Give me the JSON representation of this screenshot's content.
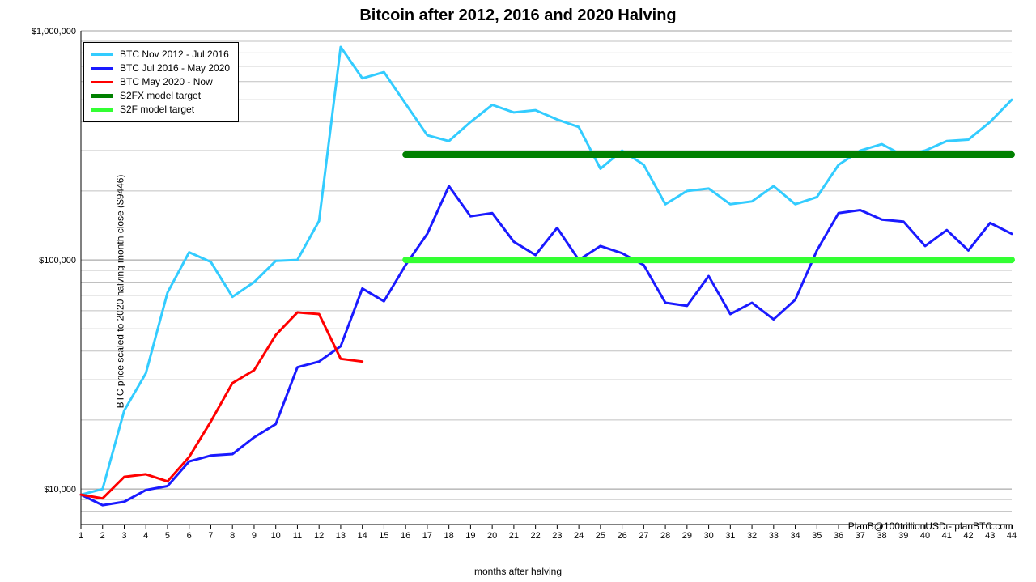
{
  "title": "Bitcoin after 2012, 2016 and 2020 Halving",
  "ylabel": "BTC price scaled to 2020 halving month close ($9446)",
  "xlabel": "months after halving",
  "attribution": "PlanB@100trillionUSD  -  planBTC.com",
  "chart": {
    "type": "line",
    "background_color": "#ffffff",
    "grid_color": "#c0c0c0",
    "x": {
      "min": 1,
      "max": 44,
      "ticks": [
        1,
        2,
        3,
        4,
        5,
        6,
        7,
        8,
        9,
        10,
        11,
        12,
        13,
        14,
        15,
        16,
        17,
        18,
        19,
        20,
        21,
        22,
        23,
        24,
        25,
        26,
        27,
        28,
        29,
        30,
        31,
        32,
        33,
        34,
        35,
        36,
        37,
        38,
        39,
        40,
        41,
        42,
        43,
        44
      ]
    },
    "y": {
      "scale": "log",
      "min": 7000,
      "max": 1000000,
      "major_ticks": [
        {
          "value": 10000,
          "label": "$10,000"
        },
        {
          "value": 100000,
          "label": "$100,000"
        },
        {
          "value": 1000000,
          "label": "$1,000,000"
        }
      ],
      "show_minor_grid": true
    },
    "series": [
      {
        "name": "BTC Nov 2012 - Jul 2016",
        "color": "#33ccff",
        "width": 3,
        "legend": true,
        "points": [
          [
            1,
            9446
          ],
          [
            2,
            10000
          ],
          [
            3,
            22000
          ],
          [
            4,
            32000
          ],
          [
            5,
            72000
          ],
          [
            6,
            108000
          ],
          [
            7,
            98000
          ],
          [
            8,
            69000
          ],
          [
            9,
            80000
          ],
          [
            10,
            99000
          ],
          [
            11,
            100000
          ],
          [
            12,
            148000
          ],
          [
            13,
            850000
          ],
          [
            14,
            620000
          ],
          [
            15,
            660000
          ],
          [
            16,
            480000
          ],
          [
            17,
            350000
          ],
          [
            18,
            330000
          ],
          [
            19,
            400000
          ],
          [
            20,
            475000
          ],
          [
            21,
            440000
          ],
          [
            22,
            450000
          ],
          [
            23,
            410000
          ],
          [
            24,
            380000
          ],
          [
            25,
            250000
          ],
          [
            26,
            300000
          ],
          [
            27,
            260000
          ],
          [
            28,
            175000
          ],
          [
            29,
            200000
          ],
          [
            30,
            205000
          ],
          [
            31,
            175000
          ],
          [
            32,
            180000
          ],
          [
            33,
            210000
          ],
          [
            34,
            175000
          ],
          [
            35,
            188000
          ],
          [
            36,
            260000
          ],
          [
            37,
            300000
          ],
          [
            38,
            320000
          ],
          [
            39,
            285000
          ],
          [
            40,
            300000
          ],
          [
            41,
            330000
          ],
          [
            42,
            335000
          ],
          [
            43,
            400000
          ],
          [
            44,
            500000
          ]
        ]
      },
      {
        "name": "BTC Jul 2016 - May 2020",
        "color": "#1a1aff",
        "width": 3,
        "legend": true,
        "points": [
          [
            1,
            9446
          ],
          [
            2,
            8500
          ],
          [
            3,
            8800
          ],
          [
            4,
            9900
          ],
          [
            5,
            10300
          ],
          [
            6,
            13200
          ],
          [
            7,
            14000
          ],
          [
            8,
            14200
          ],
          [
            9,
            16800
          ],
          [
            10,
            19200
          ],
          [
            11,
            34000
          ],
          [
            12,
            36000
          ],
          [
            13,
            42000
          ],
          [
            14,
            75000
          ],
          [
            15,
            66000
          ],
          [
            16,
            95000
          ],
          [
            17,
            130000
          ],
          [
            18,
            210000
          ],
          [
            19,
            155000
          ],
          [
            20,
            160000
          ],
          [
            21,
            120000
          ],
          [
            22,
            105000
          ],
          [
            23,
            138000
          ],
          [
            24,
            100000
          ],
          [
            25,
            115000
          ],
          [
            26,
            107000
          ],
          [
            27,
            95000
          ],
          [
            28,
            65000
          ],
          [
            29,
            63000
          ],
          [
            30,
            85000
          ],
          [
            31,
            58000
          ],
          [
            32,
            65000
          ],
          [
            33,
            55000
          ],
          [
            34,
            67000
          ],
          [
            35,
            110000
          ],
          [
            36,
            160000
          ],
          [
            37,
            165000
          ],
          [
            38,
            150000
          ],
          [
            39,
            147000
          ],
          [
            40,
            115000
          ],
          [
            41,
            135000
          ],
          [
            42,
            110000
          ],
          [
            43,
            145000
          ],
          [
            44,
            130000
          ]
        ]
      },
      {
        "name": "BTC May 2020 - Now",
        "color": "#ff0000",
        "width": 3,
        "legend": true,
        "points": [
          [
            1,
            9446
          ],
          [
            2,
            9100
          ],
          [
            3,
            11300
          ],
          [
            4,
            11600
          ],
          [
            5,
            10800
          ],
          [
            6,
            13800
          ],
          [
            7,
            19700
          ],
          [
            8,
            29000
          ],
          [
            9,
            33000
          ],
          [
            10,
            47000
          ],
          [
            11,
            59000
          ],
          [
            12,
            58000
          ],
          [
            13,
            37000
          ],
          [
            14,
            36000
          ]
        ]
      },
      {
        "name": "S2FX model target",
        "color": "#008000",
        "width": 8,
        "legend": true,
        "points": [
          [
            16,
            288000
          ],
          [
            44,
            288000
          ]
        ]
      },
      {
        "name": "S2F model target",
        "color": "#33ff33",
        "width": 8,
        "legend": true,
        "points": [
          [
            16,
            100000
          ],
          [
            44,
            100000
          ]
        ]
      }
    ]
  }
}
